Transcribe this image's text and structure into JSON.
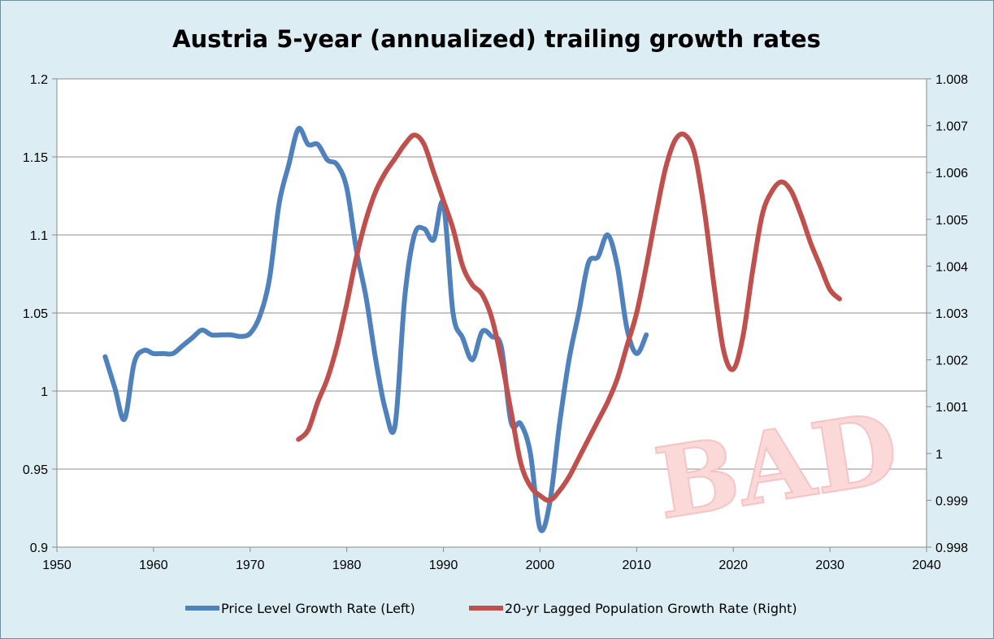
{
  "chart_data": {
    "type": "line",
    "title": "Austria 5-year (annualized) trailing growth rates",
    "xlim": [
      1950,
      2040
    ],
    "x_ticks": [
      1950,
      1960,
      1970,
      1980,
      1990,
      2000,
      2010,
      2020,
      2030,
      2040
    ],
    "ylim_left": [
      0.9,
      1.2
    ],
    "y_ticks_left": [
      "0.9",
      "0.95",
      "1",
      "1.05",
      "1.1",
      "1.15",
      "1.2"
    ],
    "ylim_right": [
      0.998,
      1.008
    ],
    "y_ticks_right": [
      "0.998",
      "0.999",
      "1",
      "1.001",
      "1.002",
      "1.003",
      "1.004",
      "1.005",
      "1.006",
      "1.007",
      "1.008"
    ],
    "grid": true,
    "legend_position": "bottom",
    "watermark": "BAD",
    "series": [
      {
        "name": "Price Level Growth Rate (Left)",
        "axis": "left",
        "color": "#4f81bd",
        "x": [
          1955,
          1956,
          1957,
          1958,
          1959,
          1960,
          1961,
          1962,
          1963,
          1964,
          1965,
          1966,
          1967,
          1968,
          1969,
          1970,
          1971,
          1972,
          1973,
          1974,
          1975,
          1976,
          1977,
          1978,
          1979,
          1980,
          1981,
          1982,
          1983,
          1984,
          1985,
          1986,
          1987,
          1988,
          1989,
          1990,
          1991,
          1992,
          1993,
          1994,
          1995,
          1996,
          1997,
          1998,
          1999,
          2000,
          2001,
          2002,
          2003,
          2004,
          2005,
          2006,
          2007,
          2008,
          2009,
          2010,
          2011
        ],
        "y": [
          1.022,
          1.002,
          0.982,
          1.018,
          1.026,
          1.024,
          1.024,
          1.024,
          1.029,
          1.034,
          1.039,
          1.036,
          1.036,
          1.036,
          1.035,
          1.037,
          1.048,
          1.072,
          1.12,
          1.145,
          1.168,
          1.158,
          1.158,
          1.148,
          1.145,
          1.13,
          1.09,
          1.06,
          1.02,
          0.988,
          0.978,
          1.06,
          1.1,
          1.104,
          1.097,
          1.12,
          1.05,
          1.034,
          1.02,
          1.038,
          1.035,
          1.028,
          0.98,
          0.979,
          0.96,
          0.912,
          0.928,
          0.978,
          1.02,
          1.05,
          1.082,
          1.086,
          1.1,
          1.08,
          1.04,
          1.024,
          1.036
        ]
      },
      {
        "name": "20-yr Lagged Population Growth Rate (Right)",
        "axis": "right",
        "color": "#c0504d",
        "x": [
          1975,
          1976,
          1977,
          1978,
          1979,
          1980,
          1981,
          1982,
          1983,
          1984,
          1985,
          1986,
          1987,
          1988,
          1989,
          1990,
          1991,
          1992,
          1993,
          1994,
          1995,
          1996,
          1997,
          1998,
          1999,
          2000,
          2001,
          2002,
          2003,
          2004,
          2005,
          2006,
          2007,
          2008,
          2009,
          2010,
          2011,
          2012,
          2013,
          2014,
          2015,
          2016,
          2017,
          2018,
          2019,
          2020,
          2021,
          2022,
          2023,
          2024,
          2025,
          2026,
          2027,
          2028,
          2029,
          2030,
          2031
        ],
        "y": [
          1.0003,
          1.0005,
          1.0011,
          1.0016,
          1.0023,
          1.0032,
          1.0042,
          1.005,
          1.0056,
          1.006,
          1.0063,
          1.0066,
          1.0068,
          1.0066,
          1.006,
          1.0054,
          1.0048,
          1.004,
          1.0036,
          1.0034,
          1.0029,
          1.002,
          1.0009,
          0.9998,
          0.9993,
          0.9991,
          0.999,
          0.9992,
          0.9995,
          0.9999,
          1.0003,
          1.0007,
          1.0011,
          1.0016,
          1.0023,
          1.003,
          1.004,
          1.0051,
          1.0061,
          1.0067,
          1.0068,
          1.0064,
          1.0052,
          1.0036,
          1.0022,
          1.0018,
          1.0025,
          1.0039,
          1.0051,
          1.0056,
          1.0058,
          1.0056,
          1.0051,
          1.0045,
          1.004,
          1.0035,
          1.0033
        ]
      }
    ]
  }
}
